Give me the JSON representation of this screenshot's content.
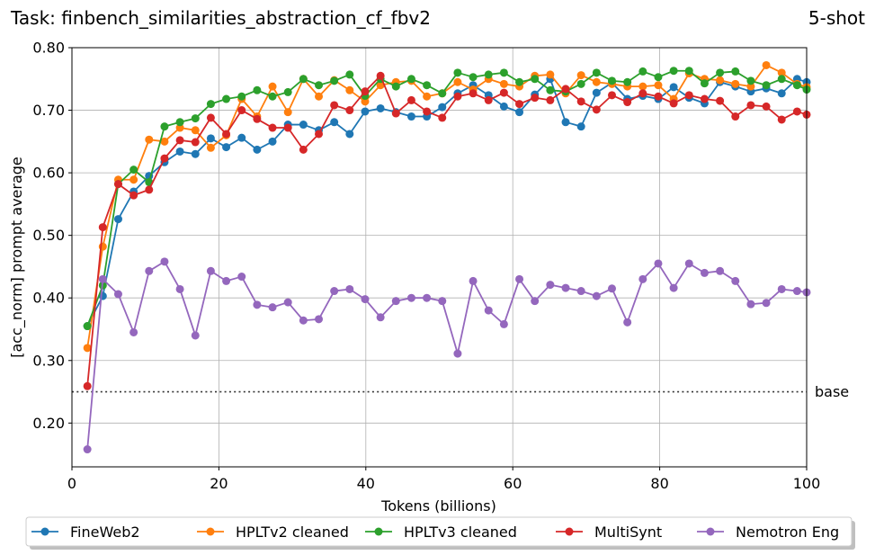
{
  "chart_data": {
    "type": "line",
    "title": "Task: finbench_similarities_abstraction_cf_fbv2",
    "subtitle": "5-shot",
    "xlabel": "Tokens (billions)",
    "ylabel": "[acc_norm] prompt average",
    "xlim": [
      0,
      100
    ],
    "ylim": [
      0.13,
      0.8
    ],
    "xticks": [
      0,
      20,
      40,
      60,
      80,
      100
    ],
    "yticks": [
      0.2,
      0.3,
      0.4,
      0.5,
      0.6,
      0.7,
      0.8
    ],
    "xtick_labels": [
      "0",
      "20",
      "40",
      "60",
      "80",
      "100"
    ],
    "ytick_labels": [
      "0.20",
      "0.30",
      "0.40",
      "0.50",
      "0.60",
      "0.70",
      "0.80"
    ],
    "grid": true,
    "legend_position": "bottom-center",
    "baseline": {
      "label": "base",
      "value": 0.25,
      "color": "#333333"
    },
    "x": [
      2.1,
      4.2,
      6.3,
      8.4,
      10.5,
      12.6,
      14.7,
      16.8,
      18.9,
      21.0,
      23.1,
      25.2,
      27.3,
      29.4,
      31.5,
      33.6,
      35.7,
      37.8,
      39.9,
      42.0,
      44.1,
      46.2,
      48.3,
      50.4,
      52.5,
      54.6,
      56.7,
      58.8,
      60.9,
      63.0,
      65.1,
      67.2,
      69.3,
      71.4,
      73.5,
      75.6,
      77.7,
      79.8,
      81.9,
      84.0,
      86.1,
      88.2,
      90.3,
      92.4,
      94.5,
      96.6,
      98.7,
      100.0
    ],
    "series": [
      {
        "name": "FineWeb2",
        "color": "#1f77b4",
        "values": [
          0.355,
          0.403,
          0.526,
          0.57,
          0.595,
          0.617,
          0.634,
          0.63,
          0.655,
          0.641,
          0.656,
          0.637,
          0.65,
          0.677,
          0.677,
          0.668,
          0.681,
          0.662,
          0.698,
          0.703,
          0.697,
          0.69,
          0.69,
          0.705,
          0.727,
          0.74,
          0.724,
          0.706,
          0.697,
          0.725,
          0.75,
          0.681,
          0.674,
          0.728,
          0.744,
          0.718,
          0.723,
          0.718,
          0.737,
          0.72,
          0.711,
          0.745,
          0.738,
          0.73,
          0.735,
          0.727,
          0.75,
          0.745
        ]
      },
      {
        "name": "HPLTv2 cleaned",
        "color": "#ff7f0e",
        "values": [
          0.32,
          0.482,
          0.589,
          0.589,
          0.653,
          0.65,
          0.672,
          0.668,
          0.64,
          0.66,
          0.718,
          0.69,
          0.738,
          0.697,
          0.75,
          0.722,
          0.748,
          0.732,
          0.714,
          0.74,
          0.745,
          0.747,
          0.722,
          0.727,
          0.745,
          0.733,
          0.75,
          0.742,
          0.738,
          0.755,
          0.757,
          0.727,
          0.756,
          0.745,
          0.742,
          0.738,
          0.738,
          0.74,
          0.718,
          0.759,
          0.75,
          0.748,
          0.742,
          0.738,
          0.772,
          0.76,
          0.742,
          0.737
        ]
      },
      {
        "name": "HPLTv3 cleaned",
        "color": "#2ca02c",
        "values": [
          0.355,
          0.42,
          0.582,
          0.605,
          0.585,
          0.674,
          0.681,
          0.687,
          0.71,
          0.718,
          0.722,
          0.732,
          0.722,
          0.729,
          0.75,
          0.74,
          0.747,
          0.757,
          0.723,
          0.75,
          0.738,
          0.75,
          0.74,
          0.727,
          0.76,
          0.753,
          0.757,
          0.76,
          0.745,
          0.75,
          0.732,
          0.73,
          0.742,
          0.76,
          0.747,
          0.745,
          0.762,
          0.753,
          0.763,
          0.763,
          0.743,
          0.76,
          0.762,
          0.747,
          0.74,
          0.75,
          0.74,
          0.733
        ]
      },
      {
        "name": "MultiSynt",
        "color": "#d62728",
        "values": [
          0.259,
          0.513,
          0.582,
          0.564,
          0.573,
          0.623,
          0.652,
          0.649,
          0.688,
          0.662,
          0.7,
          0.686,
          0.672,
          0.672,
          0.637,
          0.662,
          0.708,
          0.7,
          0.73,
          0.755,
          0.695,
          0.716,
          0.698,
          0.688,
          0.722,
          0.727,
          0.716,
          0.728,
          0.71,
          0.72,
          0.716,
          0.734,
          0.714,
          0.701,
          0.724,
          0.713,
          0.727,
          0.722,
          0.711,
          0.724,
          0.718,
          0.715,
          0.69,
          0.708,
          0.706,
          0.685,
          0.698,
          0.693
        ]
      },
      {
        "name": "Nemotron Eng",
        "color": "#9467bd",
        "values": [
          0.158,
          0.43,
          0.406,
          0.345,
          0.443,
          0.458,
          0.414,
          0.34,
          0.443,
          0.427,
          0.434,
          0.389,
          0.385,
          0.393,
          0.364,
          0.366,
          0.411,
          0.414,
          0.398,
          0.369,
          0.395,
          0.4,
          0.4,
          0.395,
          0.311,
          0.427,
          0.38,
          0.358,
          0.43,
          0.395,
          0.421,
          0.416,
          0.411,
          0.403,
          0.415,
          0.361,
          0.43,
          0.455,
          0.416,
          0.455,
          0.44,
          0.443,
          0.427,
          0.39,
          0.392,
          0.414,
          0.411,
          0.409
        ]
      }
    ]
  }
}
